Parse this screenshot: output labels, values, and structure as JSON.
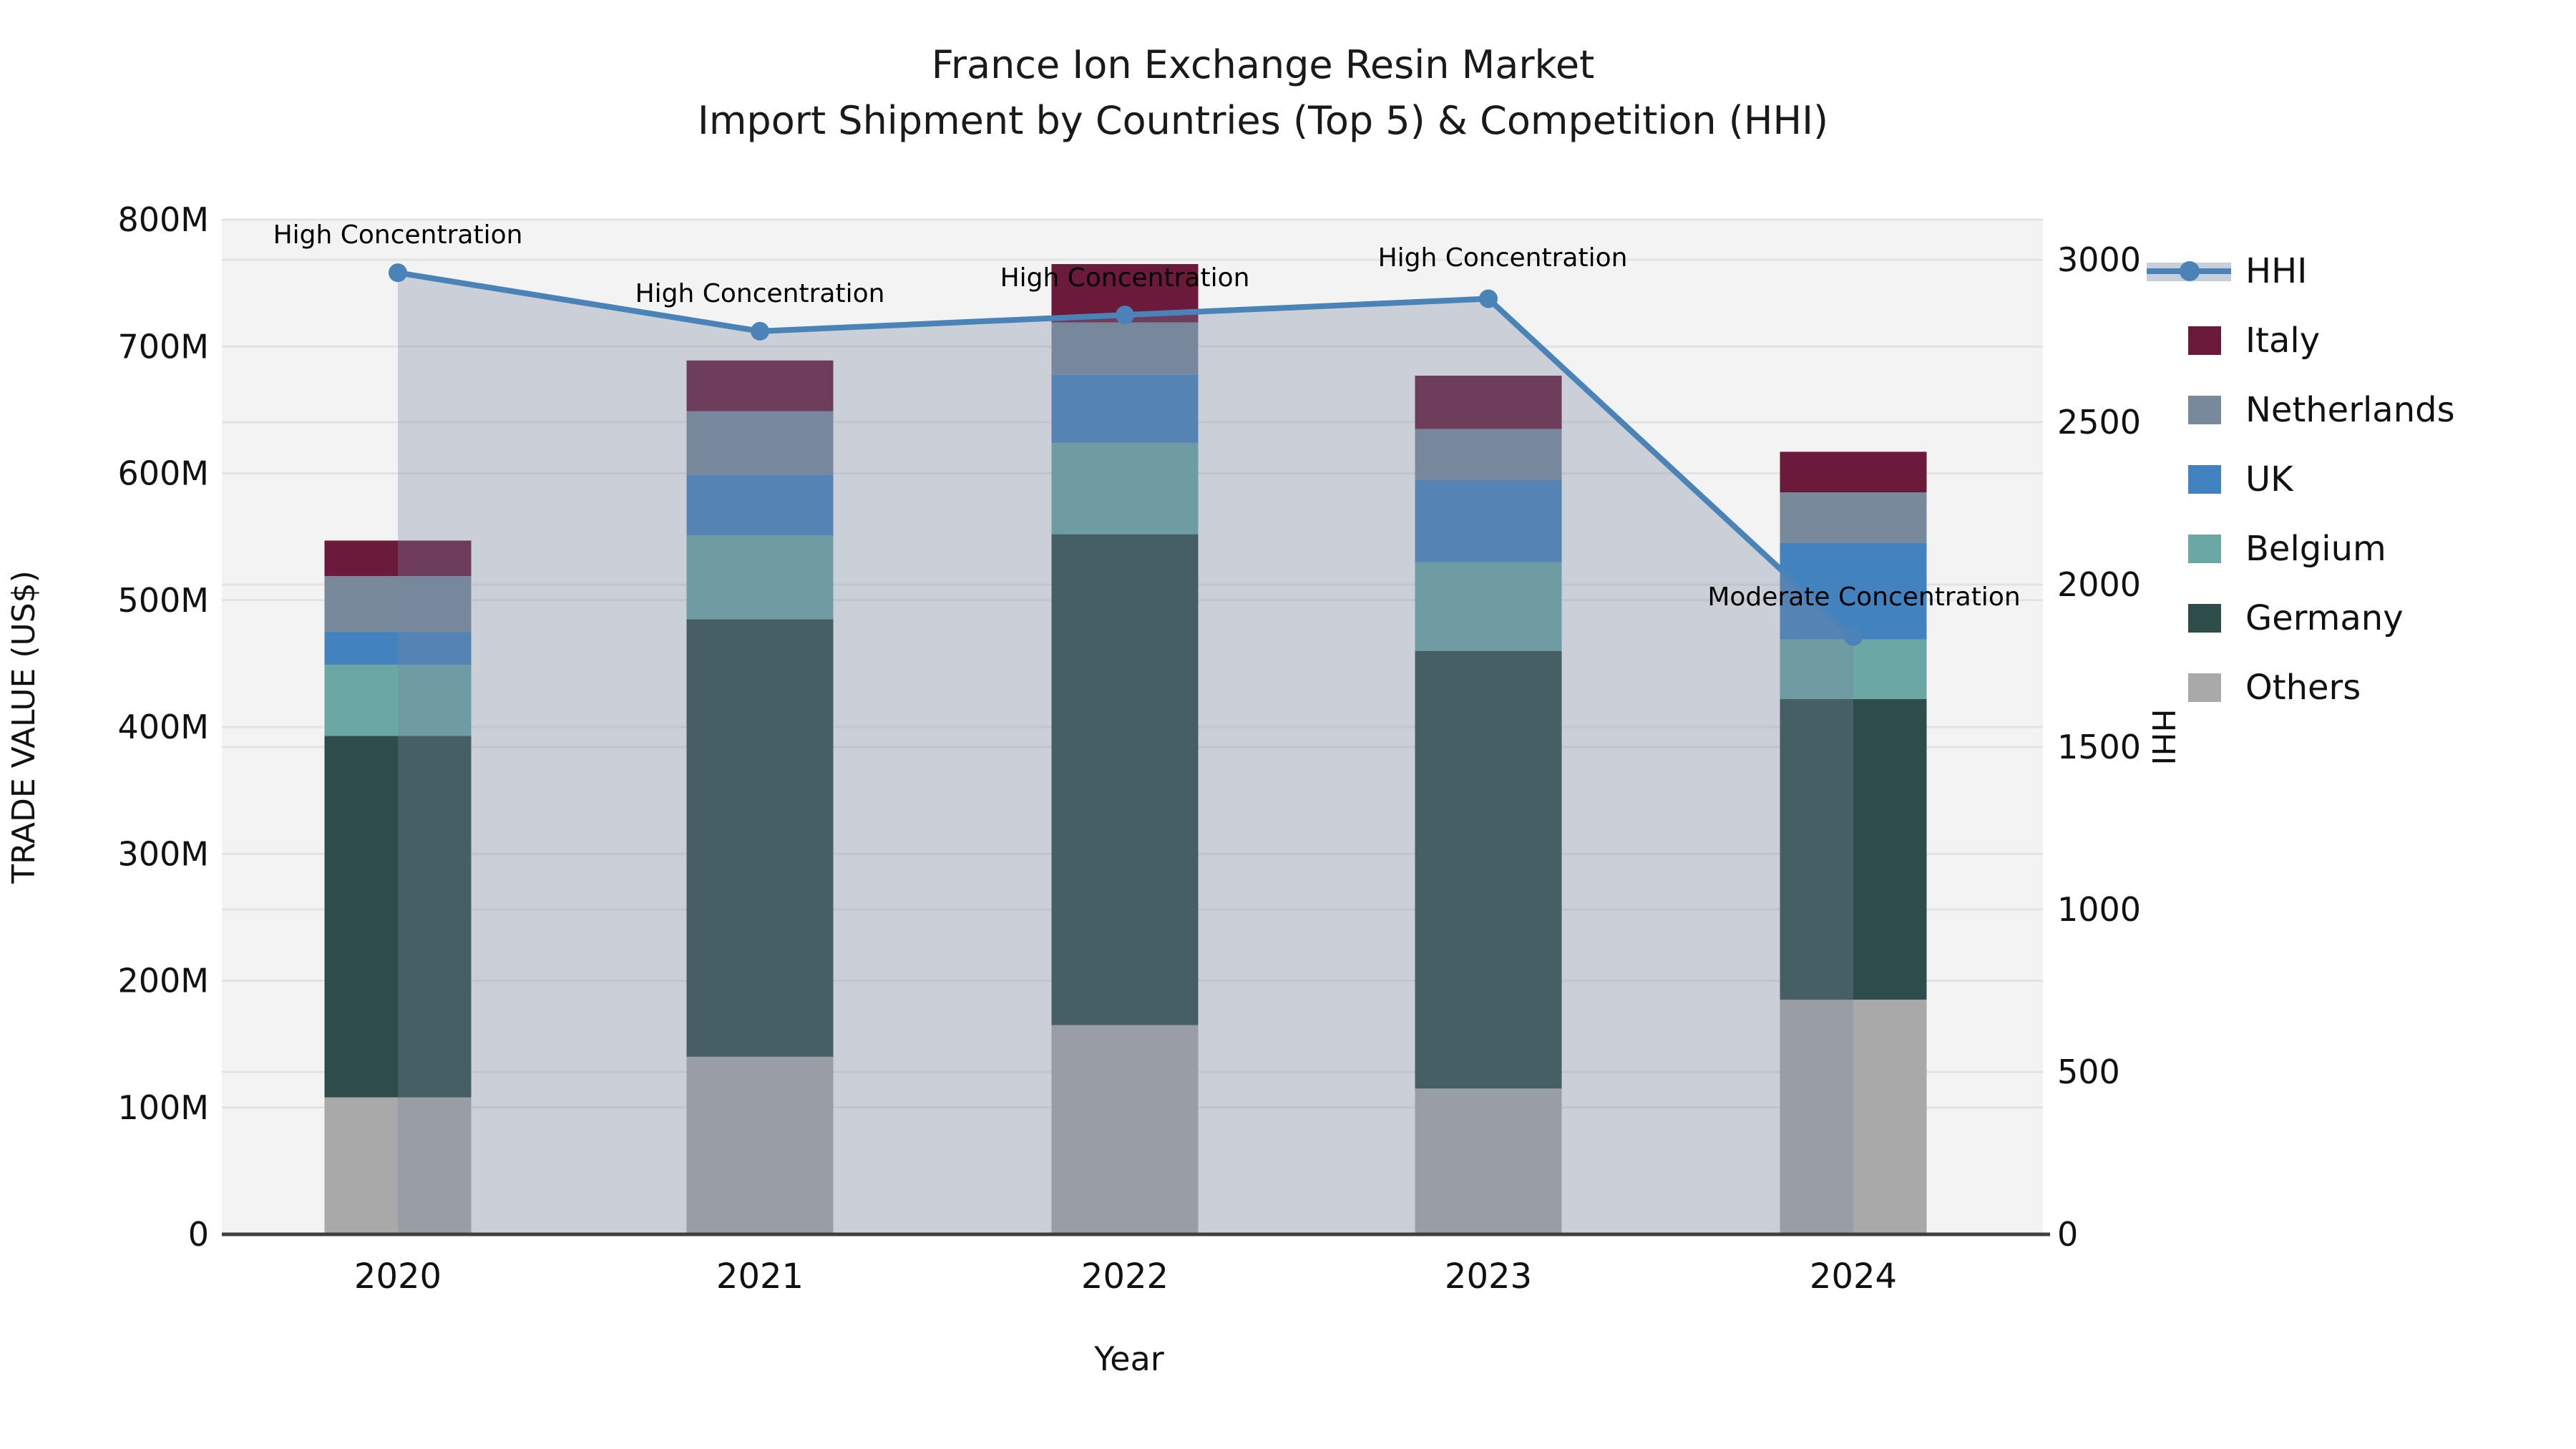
{
  "title": {
    "line1": "France Ion Exchange Resin Market",
    "line2": "Import Shipment by Countries (Top 5) & Competition (HHI)"
  },
  "chart_data": {
    "type": "bar",
    "subtype": "stacked-bar-with-line-overlay",
    "categories": [
      "2020",
      "2021",
      "2022",
      "2023",
      "2024"
    ],
    "xlabel": "Year",
    "ylabel_left": "TRADE VALUE (US$)",
    "ylabel_right": "HHI",
    "y_left_unit": "M",
    "y_left_ticks": [
      "0",
      "100M",
      "200M",
      "300M",
      "400M",
      "500M",
      "600M",
      "700M",
      "800M"
    ],
    "y_left_tick_values": [
      0,
      100,
      200,
      300,
      400,
      500,
      600,
      700,
      800
    ],
    "ylim_left": [
      0,
      800
    ],
    "y_right_ticks": [
      "0",
      "500",
      "1000",
      "1500",
      "2000",
      "2500",
      "3000"
    ],
    "y_right_tick_values": [
      0,
      500,
      1000,
      1500,
      2000,
      2500,
      3000
    ],
    "ylim_right": [
      0,
      3000
    ],
    "grid": true,
    "legend_position": "right",
    "series": [
      {
        "name": "Others",
        "color": "#a9a9a9",
        "values": [
          108,
          140,
          165,
          115,
          185
        ]
      },
      {
        "name": "Germany",
        "color": "#2e4d4a",
        "values": [
          285,
          345,
          387,
          345,
          237
        ]
      },
      {
        "name": "Belgium",
        "color": "#6ba7a4",
        "values": [
          56,
          66,
          72,
          70,
          47
        ]
      },
      {
        "name": "UK",
        "color": "#4282bf",
        "values": [
          26,
          48,
          54,
          65,
          76
        ]
      },
      {
        "name": "Netherlands",
        "color": "#78899c",
        "values": [
          44,
          50,
          41,
          40,
          40
        ]
      },
      {
        "name": "Italy",
        "color": "#6b1a3c",
        "values": [
          28,
          40,
          46,
          42,
          32
        ]
      }
    ],
    "bar_totals": [
      547,
      689,
      765,
      677,
      617
    ],
    "line_series": {
      "name": "HHI",
      "color": "#4a83b8",
      "fill_color": "rgba(120,135,158,0.33)",
      "values": [
        2960,
        2780,
        2830,
        2880,
        1840
      ]
    },
    "annotations": [
      {
        "category": "2020",
        "text": "High Concentration",
        "x": 556,
        "y": 340
      },
      {
        "category": "2021",
        "text": "High Concentration",
        "x": 1062,
        "y": 422
      },
      {
        "category": "2022",
        "text": "High Concentration",
        "x": 1572,
        "y": 400
      },
      {
        "category": "2023",
        "text": "High Concentration",
        "x": 2100,
        "y": 372
      },
      {
        "category": "2024",
        "text": "Moderate Concentration",
        "x": 2605,
        "y": 846
      }
    ],
    "legend_order": [
      "HHI",
      "Italy",
      "Netherlands",
      "UK",
      "Belgium",
      "Germany",
      "Others"
    ],
    "colors": {
      "plot_background": "#f3f3f4",
      "gridline": "#e3e3e6",
      "axis_line": "#3f3f3f",
      "text": "#111111",
      "hhi_line": "#4a83b8",
      "hhi_band": "#c7cfdc"
    }
  }
}
